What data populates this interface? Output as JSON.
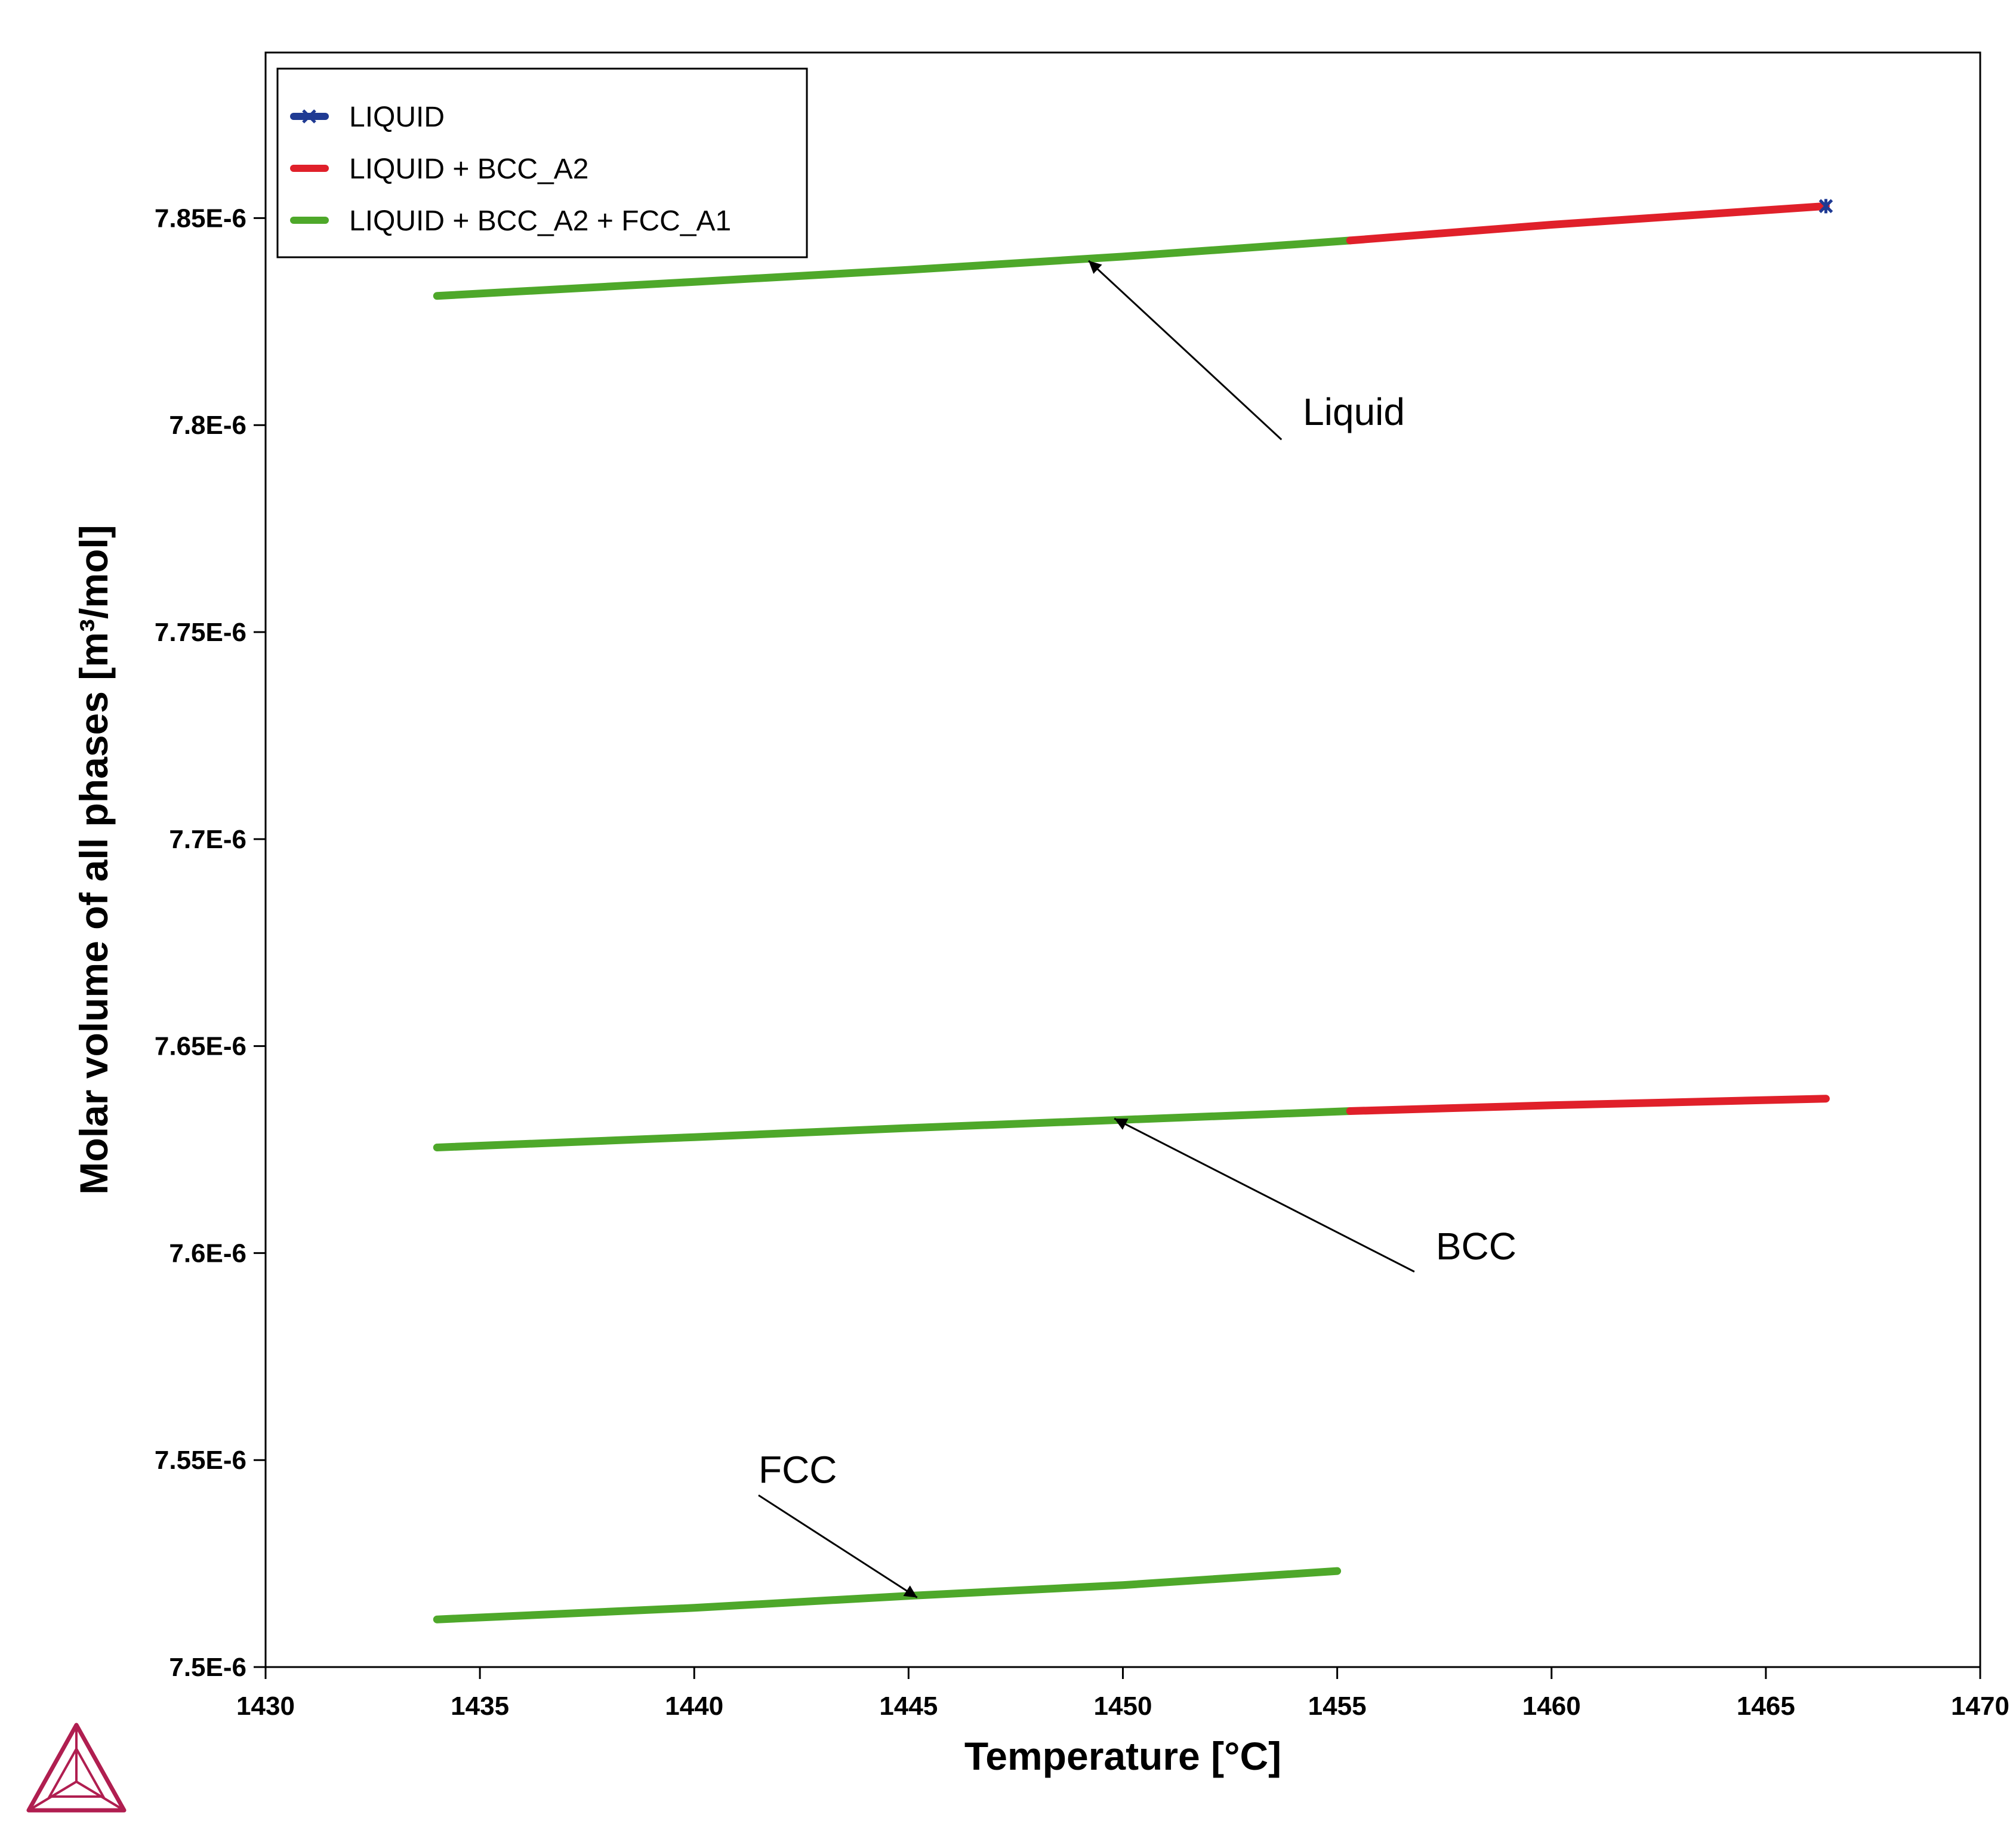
{
  "chart_data": {
    "type": "line",
    "xlabel": "Temperature [°C]",
    "ylabel": "Molar volume of all phases [m³/mol]",
    "xlim": [
      1430,
      1470
    ],
    "ylim": [
      7.5e-06,
      7.89e-06
    ],
    "x_ticks": [
      1430,
      1435,
      1440,
      1445,
      1450,
      1455,
      1460,
      1465,
      1470
    ],
    "x_tick_labels": [
      "1430",
      "1435",
      "1440",
      "1445",
      "1450",
      "1455",
      "1460",
      "1465",
      "1470"
    ],
    "y_ticks": [
      7.5e-06,
      7.55e-06,
      7.6e-06,
      7.65e-06,
      7.7e-06,
      7.75e-06,
      7.8e-06,
      7.85e-06
    ],
    "y_tick_labels": [
      "7.5E-6",
      "7.55E-6",
      "7.6E-6",
      "7.65E-6",
      "7.7E-6",
      "7.75E-6",
      "7.8E-6",
      "7.85E-6"
    ],
    "grid": false,
    "legend_position": "top-left",
    "legend": [
      {
        "name": "LIQUID",
        "color": "#1f3a93",
        "marker": "star"
      },
      {
        "name": "LIQUID + BCC_A2",
        "color": "#e0202a"
      },
      {
        "name": "LIQUID + BCC_A2 + FCC_A1",
        "color": "#4ea82a"
      }
    ],
    "series": [
      {
        "legend_index": 2,
        "x": [
          1434,
          1440,
          1445,
          1450,
          1455.3
        ],
        "y": [
          7.8312e-06,
          7.8346e-06,
          7.8375e-06,
          7.8407e-06,
          7.8446e-06
        ]
      },
      {
        "legend_index": 1,
        "x": [
          1455.3,
          1460,
          1466.4
        ],
        "y": [
          7.8446e-06,
          7.8484e-06,
          7.8529e-06
        ]
      },
      {
        "legend_index": 0,
        "x": [
          1466.4
        ],
        "y": [
          7.8529e-06
        ]
      },
      {
        "legend_index": 2,
        "x": [
          1434,
          1440,
          1445,
          1450,
          1455.3
        ],
        "y": [
          7.6255e-06,
          7.628e-06,
          7.6302e-06,
          7.6322e-06,
          7.6343e-06
        ]
      },
      {
        "legend_index": 1,
        "x": [
          1455.3,
          1460,
          1466.4
        ],
        "y": [
          7.6343e-06,
          7.6357e-06,
          7.6373e-06
        ]
      },
      {
        "legend_index": 2,
        "x": [
          1434,
          1440,
          1445,
          1450,
          1455
        ],
        "y": [
          7.5115e-06,
          7.5143e-06,
          7.5172e-06,
          7.5198e-06,
          7.5232e-06
        ]
      }
    ],
    "annotations": [
      {
        "text": "Liquid",
        "text_x": 1454.2,
        "text_y": 7.8e-06,
        "line_from": [
          1453.7,
          7.7965e-06
        ],
        "arrow_to": [
          1449.2,
          7.8397e-06
        ]
      },
      {
        "text": "BCC",
        "text_x": 1457.3,
        "text_y": 7.5985e-06,
        "line_from": [
          1456.8,
          7.5955e-06
        ],
        "arrow_to": [
          1449.8,
          7.6325e-06
        ]
      },
      {
        "text": "FCC",
        "text_x": 1441.5,
        "text_y": 7.5445e-06,
        "line_from": [
          1441.5,
          7.5415e-06
        ],
        "arrow_to": [
          1445.2,
          7.5168e-06
        ]
      }
    ]
  },
  "logo": {
    "name": "triangle-logo",
    "color": "#b01e50"
  }
}
